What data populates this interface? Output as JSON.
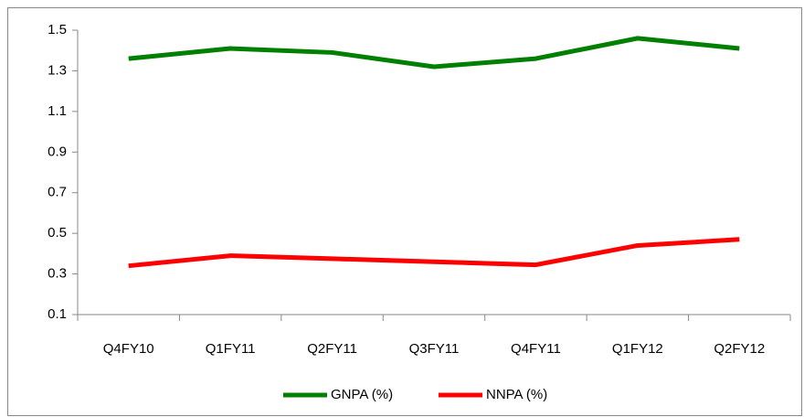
{
  "chart_data": {
    "type": "line",
    "categories": [
      "Q4FY10",
      "Q1FY11",
      "Q2FY11",
      "Q3FY11",
      "Q4FY11",
      "Q1FY12",
      "Q2FY12"
    ],
    "series": [
      {
        "name": "GNPA (%)",
        "color": "#008000",
        "values": [
          1.36,
          1.41,
          1.39,
          1.32,
          1.36,
          1.46,
          1.41
        ]
      },
      {
        "name": "NNPA (%)",
        "color": "#ff0000",
        "values": [
          0.34,
          0.39,
          0.375,
          0.36,
          0.345,
          0.44,
          0.47
        ]
      }
    ],
    "ylim": [
      0.1,
      1.5
    ],
    "yticks": [
      0.1,
      0.3,
      0.5,
      0.7,
      0.9,
      1.1,
      1.3,
      1.5
    ],
    "grid": false,
    "legend": "bottom"
  }
}
